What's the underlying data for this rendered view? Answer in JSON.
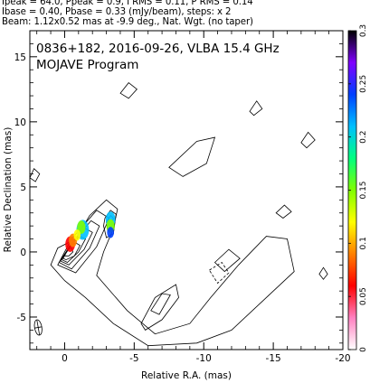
{
  "header": {
    "line1": "Ipeak = 64.0, Ppeak = 0.9, I RMS = 0.11, P RMS = 0.14",
    "line2": "Ibase = 0.40, Pbase = 0.33 (mJy/beam), steps: x 2",
    "line3": "Beam: 1.12x0.52 mas at -9.9 deg., Nat. Wgt. (no taper)"
  },
  "chart_data": {
    "type": "contour",
    "title": "0836+182, 2016-09-26, VLBA 15.4 GHz",
    "subtitle": "MOJAVE Program",
    "xlabel": "Relative R.A. (mas)",
    "ylabel": "Relative Declination (mas)",
    "xlim": [
      2.5,
      -20
    ],
    "ylim": [
      -7.5,
      17
    ],
    "xticks": [
      0,
      -5,
      -10,
      -15,
      -20
    ],
    "yticks": [
      -5,
      0,
      5,
      10,
      15
    ],
    "grid": false,
    "colorbar": {
      "ticks": [
        0,
        0.05,
        0.1,
        0.15,
        0.2,
        0.25,
        0.3
      ],
      "range": [
        0,
        0.3
      ],
      "stops": [
        "#ffffff",
        "#ff80c0",
        "#ff0000",
        "#ff8000",
        "#ffff00",
        "#80ff00",
        "#00ff80",
        "#00c0ff",
        "#0040ff",
        "#8000ff",
        "#000000"
      ]
    },
    "beam": {
      "major": 1.12,
      "minor": 0.52,
      "pa_deg": -9.9
    },
    "core": {
      "x": 0,
      "y": 0
    },
    "contours": [
      [
        [
          0.8,
          1.0
        ],
        [
          1.8,
          2.8
        ],
        [
          3.0,
          4.0
        ],
        [
          3.8,
          3.3
        ],
        [
          3.5,
          1.8
        ],
        [
          2.8,
          0.0
        ],
        [
          2.3,
          -1.8
        ],
        [
          4.5,
          -4.5
        ],
        [
          6.5,
          -6.3
        ],
        [
          9.0,
          -5.5
        ],
        [
          10.5,
          -3.5
        ],
        [
          12.5,
          -1.0
        ],
        [
          14.5,
          1.2
        ],
        [
          16.0,
          1.0
        ],
        [
          16.5,
          -1.5
        ],
        [
          14.5,
          -3.5
        ],
        [
          12.0,
          -6.0
        ],
        [
          9.5,
          -7.0
        ],
        [
          6.0,
          -7.2
        ],
        [
          3.5,
          -5.5
        ],
        [
          1.5,
          -3.5
        ],
        [
          0.0,
          -2.2
        ],
        [
          -1.0,
          -1.0
        ],
        [
          -0.5,
          0.3
        ],
        [
          0.8,
          1.0
        ]
      ],
      [
        [
          -0.5,
          -1.0
        ],
        [
          0.5,
          1.0
        ],
        [
          2.3,
          3.2
        ],
        [
          3.2,
          2.6
        ],
        [
          2.3,
          0.4
        ],
        [
          0.8,
          -1.6
        ],
        [
          -0.5,
          -1.0
        ]
      ],
      [
        [
          -0.4,
          -0.8
        ],
        [
          0.6,
          0.8
        ],
        [
          1.9,
          2.4
        ],
        [
          2.5,
          2.0
        ],
        [
          1.8,
          0.3
        ],
        [
          0.5,
          -1.3
        ],
        [
          -0.4,
          -0.8
        ]
      ],
      [
        [
          -0.3,
          -0.7
        ],
        [
          0.6,
          0.7
        ],
        [
          1.5,
          1.8
        ],
        [
          2.0,
          1.5
        ],
        [
          1.4,
          0.2
        ],
        [
          0.3,
          -1.0
        ],
        [
          -0.3,
          -0.7
        ]
      ],
      [
        [
          -0.2,
          -0.6
        ],
        [
          0.5,
          0.6
        ],
        [
          1.1,
          1.2
        ],
        [
          1.5,
          1.0
        ],
        [
          1.0,
          0.0
        ],
        [
          0.2,
          -0.8
        ],
        [
          -0.2,
          -0.6
        ]
      ],
      [
        [
          -0.1,
          -0.5
        ],
        [
          0.3,
          0.4
        ],
        [
          0.8,
          0.7
        ],
        [
          1.1,
          0.5
        ],
        [
          0.7,
          -0.3
        ],
        [
          0.1,
          -0.6
        ],
        [
          -0.1,
          -0.5
        ]
      ],
      [
        [
          0.0,
          -0.3
        ],
        [
          0.2,
          0.2
        ],
        [
          0.5,
          0.3
        ],
        [
          0.6,
          0.0
        ],
        [
          0.3,
          -0.3
        ],
        [
          0.0,
          -0.3
        ]
      ],
      [
        [
          2.9,
          2.6
        ],
        [
          3.3,
          3.2
        ],
        [
          3.7,
          2.9
        ],
        [
          3.5,
          1.4
        ],
        [
          3.0,
          1.1
        ],
        [
          2.8,
          2.0
        ],
        [
          2.9,
          2.6
        ]
      ],
      [
        [
          3.0,
          2.3
        ],
        [
          3.3,
          2.8
        ],
        [
          3.5,
          2.6
        ],
        [
          3.3,
          1.7
        ],
        [
          3.1,
          1.6
        ],
        [
          3.0,
          2.3
        ]
      ],
      [
        [
          5.5,
          -5.5
        ],
        [
          6.5,
          -3.5
        ],
        [
          8.0,
          -2.5
        ],
        [
          8.2,
          -3.5
        ],
        [
          7.0,
          -5.2
        ],
        [
          5.8,
          -6.0
        ],
        [
          5.5,
          -5.5
        ]
      ],
      [
        [
          6.2,
          -4.5
        ],
        [
          7.0,
          -3.2
        ],
        [
          7.6,
          -3.3
        ],
        [
          6.8,
          -4.8
        ],
        [
          6.2,
          -4.5
        ]
      ],
      [
        [
          7.5,
          6.5
        ],
        [
          9.5,
          8.5
        ],
        [
          10.8,
          8.8
        ],
        [
          10.2,
          6.8
        ],
        [
          8.5,
          5.8
        ],
        [
          7.5,
          6.5
        ]
      ],
      [
        [
          4.0,
          12.2
        ],
        [
          4.6,
          13.0
        ],
        [
          5.2,
          12.5
        ],
        [
          4.6,
          11.8
        ],
        [
          4.0,
          12.2
        ]
      ],
      [
        [
          -2.5,
          5.7
        ],
        [
          -2.2,
          6.4
        ],
        [
          -1.8,
          6.0
        ],
        [
          -2.1,
          5.4
        ],
        [
          -2.5,
          5.7
        ]
      ],
      [
        [
          10.8,
          -0.8
        ],
        [
          11.8,
          0.2
        ],
        [
          12.6,
          -0.5
        ],
        [
          11.5,
          -1.5
        ],
        [
          10.8,
          -0.8
        ]
      ],
      [
        [
          17.0,
          8.4
        ],
        [
          17.5,
          9.2
        ],
        [
          18.0,
          8.6
        ],
        [
          17.4,
          8.0
        ],
        [
          17.0,
          8.4
        ]
      ],
      [
        [
          13.3,
          10.8
        ],
        [
          13.8,
          11.6
        ],
        [
          14.2,
          11.0
        ],
        [
          13.6,
          10.5
        ],
        [
          13.3,
          10.8
        ]
      ],
      [
        [
          15.2,
          3.0
        ],
        [
          15.8,
          3.6
        ],
        [
          16.3,
          3.1
        ],
        [
          15.7,
          2.6
        ],
        [
          15.2,
          3.0
        ]
      ],
      [
        [
          18.3,
          -1.7
        ],
        [
          18.6,
          -1.2
        ],
        [
          18.9,
          -1.7
        ],
        [
          18.6,
          -2.1
        ],
        [
          18.3,
          -1.7
        ]
      ]
    ],
    "negative_contours": [
      [
        [
          10.4,
          -1.4
        ],
        [
          11.3,
          -0.8
        ],
        [
          11.8,
          -1.6
        ],
        [
          11.0,
          -2.4
        ],
        [
          10.4,
          -1.4
        ]
      ]
    ],
    "polarization_blobs": [
      {
        "x": 1.3,
        "y": 1.7,
        "r": 0.45,
        "color": "#00c0ff"
      },
      {
        "x": 1.2,
        "y": 1.9,
        "r": 0.3,
        "color": "#80ff00"
      },
      {
        "x": 0.4,
        "y": 0.6,
        "r": 0.35,
        "color": "#ff0000"
      },
      {
        "x": 0.6,
        "y": 0.9,
        "r": 0.3,
        "color": "#ff8000"
      },
      {
        "x": 0.9,
        "y": 1.3,
        "r": 0.25,
        "color": "#ffff00"
      },
      {
        "x": 3.3,
        "y": 2.5,
        "r": 0.35,
        "color": "#00c0ff"
      },
      {
        "x": 3.3,
        "y": 2.0,
        "r": 0.3,
        "color": "#80ff00"
      },
      {
        "x": 3.3,
        "y": 1.5,
        "r": 0.25,
        "color": "#0040ff"
      }
    ]
  }
}
